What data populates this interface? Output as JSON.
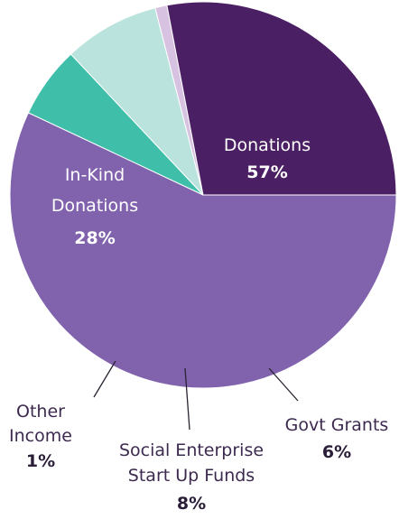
{
  "chart_data": {
    "type": "pie",
    "title": "",
    "slices": [
      {
        "key": "donations",
        "label": [
          "Donations"
        ],
        "pct_label": "57%",
        "value": 57,
        "color": "#8062ad"
      },
      {
        "key": "govt",
        "label": [
          "Govt Grants"
        ],
        "pct_label": "6%",
        "value": 6,
        "color": "#3fbfaa"
      },
      {
        "key": "social",
        "label": [
          "Social Enterprise",
          "Start Up Funds"
        ],
        "pct_label": "8%",
        "value": 8,
        "color": "#b9e3dc"
      },
      {
        "key": "other",
        "label": [
          "Other",
          "Income"
        ],
        "pct_label": "1%",
        "value": 1,
        "color": "#d8c2e2"
      },
      {
        "key": "inkind",
        "label": [
          "In-Kind",
          "Donations"
        ],
        "pct_label": "28%",
        "value": 28,
        "color": "#4b1f63"
      }
    ]
  }
}
